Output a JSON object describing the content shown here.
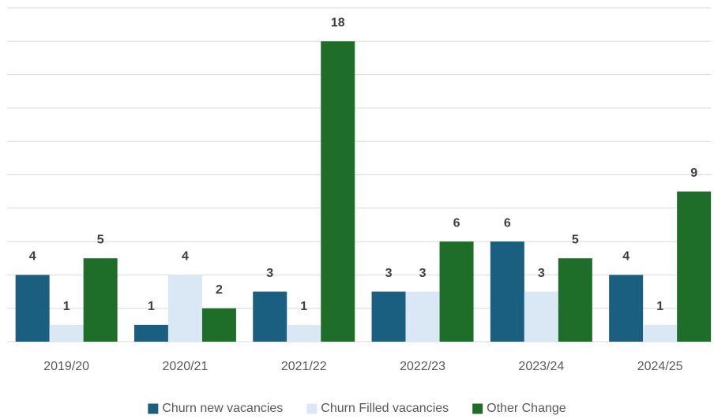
{
  "chart_data": {
    "type": "bar",
    "categories": [
      "2019/20",
      "2020/21",
      "2021/22",
      "2022/23",
      "2023/24",
      "2024/25"
    ],
    "series": [
      {
        "name": "Churn new vacancies",
        "color": "#1a5f80",
        "values": [
          4,
          1,
          3,
          3,
          6,
          4
        ]
      },
      {
        "name": "Churn Filled vacancies",
        "color": "#dae8f5",
        "values": [
          1,
          4,
          1,
          3,
          3,
          1
        ]
      },
      {
        "name": "Other Change",
        "color": "#1e6e2a",
        "values": [
          5,
          2,
          18,
          6,
          5,
          9
        ]
      }
    ],
    "ylim": [
      0,
      20
    ],
    "yticks": [
      0,
      2,
      4,
      6,
      8,
      10,
      12,
      14,
      16,
      18,
      20
    ],
    "grid": true,
    "legend": "bottom"
  }
}
